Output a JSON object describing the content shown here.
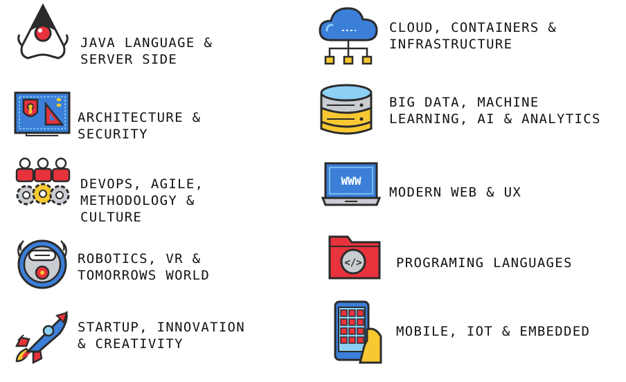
{
  "topics": [
    {
      "label": "JAVA LANGUAGE &\nSERVER SIDE",
      "icon": "java-duke-icon"
    },
    {
      "label": "ARCHITECTURE &\nSECURITY",
      "icon": "architecture-blueprint-icon"
    },
    {
      "label": "DEVOPS, AGILE,\nMETHODOLOGY &\nCULTURE",
      "icon": "team-gears-icon"
    },
    {
      "label": "ROBOTICS, VR &\nTOMORROWS WORLD",
      "icon": "robot-vacuum-icon"
    },
    {
      "label": "STARTUP, INNOVATION\n& CREATIVITY",
      "icon": "rocket-icon"
    },
    {
      "label": "CLOUD, CONTAINERS &\nINFRASTRUCTURE",
      "icon": "cloud-network-icon"
    },
    {
      "label": "BIG DATA, MACHINE\nLEARNING, AI & ANALYTICS",
      "icon": "database-icon"
    },
    {
      "label": "MODERN WEB & UX",
      "icon": "laptop-www-icon"
    },
    {
      "label": "PROGRAMING LANGUAGES",
      "icon": "code-folder-icon"
    },
    {
      "label": "MOBILE, IOT & EMBEDDED",
      "icon": "smartphone-hand-icon"
    }
  ],
  "icon_text": {
    "www": "WWW",
    "code": "</>"
  },
  "colors": {
    "outline": "#2b2b2b",
    "red": "#e8323c",
    "blue": "#3b7fd9",
    "light_blue": "#8dd0f5",
    "yellow": "#f7c832",
    "gray": "#c9ccd1"
  }
}
